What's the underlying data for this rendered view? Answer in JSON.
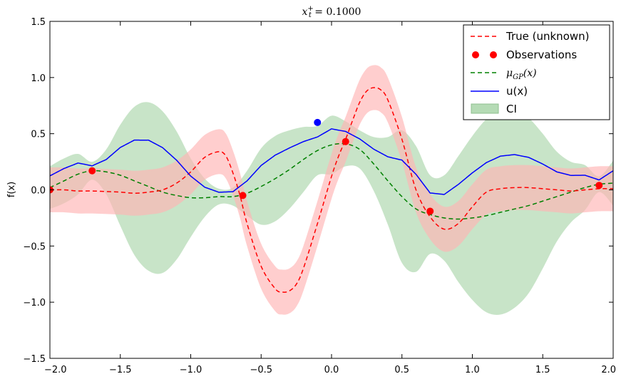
{
  "chart_data": {
    "type": "line",
    "title_parts": {
      "base": "x",
      "sub": "t",
      "sup": "+",
      "rest": " = 0.1000"
    },
    "ylabel": "f(x)",
    "xlim": [
      -2.0,
      2.0
    ],
    "ylim": [
      -1.5,
      1.5
    ],
    "x_ticks": [
      -2.0,
      -1.5,
      -1.0,
      -0.5,
      0.0,
      0.5,
      1.0,
      1.5,
      2.0
    ],
    "x_tick_labels": [
      "−2.0",
      "−1.5",
      "−1.0",
      "−0.5",
      "0.0",
      "0.5",
      "1.0",
      "1.5",
      "2.0"
    ],
    "y_ticks": [
      -1.5,
      -1.0,
      -0.5,
      0.0,
      0.5,
      1.0,
      1.5
    ],
    "y_tick_labels": [
      "−1.5",
      "−1.0",
      "−0.5",
      "0.0",
      "0.5",
      "1.0",
      "1.5"
    ],
    "grid": false,
    "legend_position": "top-right",
    "legend": {
      "true": "True (unknown)",
      "observations": "Observations",
      "mu_parts": {
        "base": "μ",
        "sub": "GP",
        "rest": "(x)"
      },
      "ux": "u(x)",
      "ci": "CI"
    },
    "colors": {
      "true": "#ff0000",
      "observations": "#ff0000",
      "mu": "#008000",
      "ux": "#0000ff",
      "ci": "#b5dbb5",
      "true_band": "#ffb3b3",
      "selected_point": "#0000ff"
    },
    "true_curve": {
      "x": [
        -2.0,
        -1.9,
        -1.8,
        -1.7,
        -1.6,
        -1.5,
        -1.4,
        -1.3,
        -1.2,
        -1.1,
        -1.0,
        -0.9,
        -0.8,
        -0.75,
        -0.7,
        -0.65,
        -0.6,
        -0.5,
        -0.4,
        -0.35,
        -0.3,
        -0.25,
        -0.2,
        -0.1,
        0.0,
        0.05,
        0.1,
        0.15,
        0.2,
        0.25,
        0.3,
        0.35,
        0.4,
        0.5,
        0.6,
        0.7,
        0.8,
        0.9,
        1.0,
        1.1,
        1.2,
        1.3,
        1.4,
        1.5,
        1.6,
        1.7,
        1.8,
        1.9,
        2.0
      ],
      "y": [
        0.0,
        0.0,
        -0.01,
        -0.01,
        -0.015,
        -0.02,
        -0.03,
        -0.02,
        0.0,
        0.06,
        0.16,
        0.29,
        0.34,
        0.3,
        0.15,
        -0.05,
        -0.3,
        -0.68,
        -0.88,
        -0.91,
        -0.9,
        -0.84,
        -0.7,
        -0.3,
        0.12,
        0.3,
        0.45,
        0.62,
        0.78,
        0.88,
        0.91,
        0.89,
        0.8,
        0.45,
        0.0,
        -0.24,
        -0.35,
        -0.3,
        -0.15,
        -0.02,
        0.01,
        0.02,
        0.02,
        0.01,
        0.0,
        -0.01,
        0.0,
        0.01,
        0.01
      ]
    },
    "true_band_halfwidth": 0.2,
    "mu_curve": {
      "x": [
        -2.0,
        -1.9,
        -1.8,
        -1.7,
        -1.6,
        -1.5,
        -1.4,
        -1.3,
        -1.2,
        -1.1,
        -1.0,
        -0.9,
        -0.8,
        -0.7,
        -0.6,
        -0.5,
        -0.4,
        -0.3,
        -0.2,
        -0.1,
        0.0,
        0.1,
        0.2,
        0.3,
        0.4,
        0.5,
        0.6,
        0.7,
        0.8,
        0.9,
        1.0,
        1.1,
        1.2,
        1.3,
        1.4,
        1.5,
        1.6,
        1.7,
        1.8,
        1.9,
        2.0
      ],
      "y": [
        0.02,
        0.08,
        0.14,
        0.17,
        0.16,
        0.13,
        0.08,
        0.03,
        -0.02,
        -0.05,
        -0.07,
        -0.07,
        -0.06,
        -0.06,
        -0.03,
        0.03,
        0.1,
        0.18,
        0.27,
        0.35,
        0.4,
        0.41,
        0.36,
        0.23,
        0.08,
        -0.06,
        -0.17,
        -0.22,
        -0.25,
        -0.26,
        -0.25,
        -0.23,
        -0.2,
        -0.17,
        -0.14,
        -0.1,
        -0.06,
        -0.02,
        0.02,
        0.05,
        0.06
      ]
    },
    "ci_halfwidth": {
      "x": [
        -2.0,
        -1.9,
        -1.8,
        -1.7,
        -1.6,
        -1.5,
        -1.4,
        -1.3,
        -1.2,
        -1.1,
        -1.0,
        -0.9,
        -0.8,
        -0.7,
        -0.6,
        -0.5,
        -0.4,
        -0.3,
        -0.2,
        -0.1,
        0.0,
        0.1,
        0.2,
        0.3,
        0.4,
        0.5,
        0.6,
        0.7,
        0.8,
        0.9,
        1.0,
        1.1,
        1.2,
        1.3,
        1.4,
        1.5,
        1.6,
        1.7,
        1.8,
        1.9,
        2.0
      ],
      "h": [
        0.19,
        0.2,
        0.18,
        0.08,
        0.2,
        0.45,
        0.66,
        0.75,
        0.72,
        0.57,
        0.35,
        0.17,
        0.07,
        0.08,
        0.2,
        0.34,
        0.38,
        0.35,
        0.29,
        0.22,
        0.26,
        0.2,
        0.17,
        0.24,
        0.39,
        0.59,
        0.56,
        0.35,
        0.38,
        0.56,
        0.73,
        0.86,
        0.91,
        0.88,
        0.78,
        0.6,
        0.4,
        0.27,
        0.2,
        0.07,
        0.2
      ]
    },
    "observations": {
      "x": [
        -2.0,
        -1.7,
        -0.63,
        0.1,
        0.7,
        1.9
      ],
      "y": [
        0.0,
        0.17,
        -0.05,
        0.43,
        -0.19,
        0.04
      ]
    },
    "selected_point": {
      "x": -0.1,
      "y": 0.6
    }
  }
}
